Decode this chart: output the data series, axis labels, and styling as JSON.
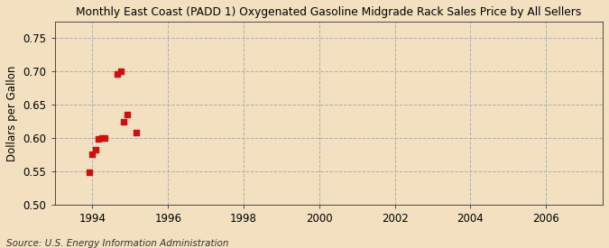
{
  "title": "Monthly East Coast (PADD 1) Oxygenated Gasoline Midgrade Rack Sales Price by All Sellers",
  "ylabel": "Dollars per Gallon",
  "source": "Source: U.S. Energy Information Administration",
  "background_color": "#f2e0c0",
  "plot_bg_color": "#f2e0c0",
  "grid_color": "#aaaaaa",
  "point_color": "#cc1111",
  "xlim": [
    1993.0,
    2007.5
  ],
  "ylim": [
    0.5,
    0.775
  ],
  "xticks": [
    1994,
    1996,
    1998,
    2000,
    2002,
    2004,
    2006
  ],
  "yticks": [
    0.5,
    0.55,
    0.6,
    0.65,
    0.7,
    0.75
  ],
  "x_data": [
    1993.917,
    1994.0,
    1994.083,
    1994.167,
    1994.25,
    1994.333,
    1994.667,
    1994.75,
    1994.833,
    1994.917,
    1995.167
  ],
  "y_data": [
    0.549,
    0.575,
    0.583,
    0.598,
    0.6,
    0.6,
    0.696,
    0.7,
    0.625,
    0.635,
    0.608
  ]
}
